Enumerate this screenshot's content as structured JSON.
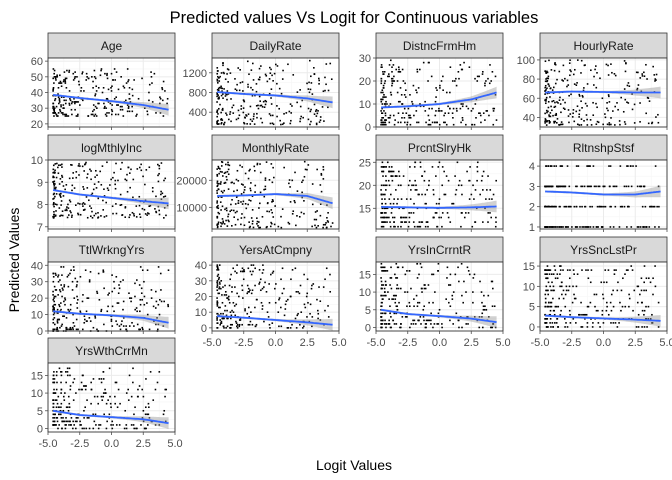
{
  "chart_data": {
    "type": "scatter",
    "title": "Predicted values Vs Logit for Continuous variables",
    "xlabel": "Logit Values",
    "ylabel": "Predicted Values",
    "layout": "facet-grid-4-columns",
    "grid": true,
    "colors": {
      "strip_bg": "#d9d9d9",
      "strip_border": "#333333",
      "panel_border": "#333333",
      "grid_major": "#ebebeb",
      "grid_minor": "#f5f5f5",
      "points": "#000000",
      "smooth_line": "#3366ff",
      "ci_band": "#999999",
      "text": "#000000",
      "tick_text": "#4d4d4d"
    },
    "x_ticks": [
      "-5.0",
      "-2.5",
      "0.0",
      "2.5",
      "5.0"
    ],
    "x_tick_values": [
      -5.0,
      -2.5,
      0.0,
      2.5,
      5.0
    ],
    "xlim": [
      -5.0,
      5.0
    ],
    "panels": [
      {
        "name": "Age",
        "ylim": [
          18,
          62
        ],
        "yticks": [
          20,
          30,
          40,
          50,
          60
        ],
        "point_band": [
          25,
          55
        ],
        "trend": {
          "x": [
            -4.6,
            -2.5,
            0,
            2.5,
            4.5
          ],
          "y": [
            38.5,
            36.5,
            34.5,
            32,
            29
          ]
        }
      },
      {
        "name": "DailyRate",
        "ylim": [
          100,
          1500
        ],
        "yticks": [
          400,
          800,
          1200
        ],
        "point_band": [
          150,
          1450
        ],
        "trend": {
          "x": [
            -4.6,
            -2.5,
            0,
            2.5,
            4.5
          ],
          "y": [
            810,
            770,
            740,
            680,
            600
          ]
        }
      },
      {
        "name": "DistncFrmHm",
        "ylim": [
          0,
          30
        ],
        "yticks": [
          0,
          10,
          20,
          30
        ],
        "point_band": [
          1,
          29
        ],
        "trend": {
          "x": [
            -4.6,
            -2.5,
            0,
            2.5,
            4.5
          ],
          "y": [
            8.5,
            9,
            10,
            12,
            15
          ]
        }
      },
      {
        "name": "HourlyRate",
        "ylim": [
          30,
          102
        ],
        "yticks": [
          40,
          60,
          80,
          100
        ],
        "point_band": [
          32,
          100
        ],
        "trend": {
          "x": [
            -4.6,
            -2.5,
            0,
            2.5,
            4.5
          ],
          "y": [
            66,
            67,
            66.5,
            66,
            66
          ]
        }
      },
      {
        "name": "logMthlyInc",
        "ylim": [
          6.9,
          10
        ],
        "yticks": [
          7,
          8,
          9,
          10
        ],
        "point_band": [
          7.4,
          9.9
        ],
        "trend": {
          "x": [
            -4.6,
            -2.5,
            0,
            2.5,
            4.5
          ],
          "y": [
            8.65,
            8.45,
            8.3,
            8.15,
            8.05
          ]
        }
      },
      {
        "name": "MonthlyRate",
        "ylim": [
          2000,
          27500
        ],
        "yticks": [
          10000,
          20000
        ],
        "point_band": [
          2500,
          27000
        ],
        "trend": {
          "x": [
            -4.6,
            -2.5,
            0,
            2.5,
            4.5
          ],
          "y": [
            14200,
            14400,
            14900,
            14200,
            11500
          ]
        }
      },
      {
        "name": "PrcntSlryHk",
        "ylim": [
          10.5,
          25.5
        ],
        "yticks": [
          15,
          20,
          25
        ],
        "point_band": [
          11,
          25
        ],
        "trend": {
          "x": [
            -4.6,
            -2.5,
            0,
            2.5,
            4.5
          ],
          "y": [
            15.3,
            15.2,
            15.1,
            15.2,
            15.4
          ]
        }
      },
      {
        "name": "RltnshpStsf",
        "ylim": [
          0.9,
          4.3
        ],
        "yticks": [
          1,
          2,
          3,
          4
        ],
        "point_band": [
          1,
          4
        ],
        "trend": {
          "x": [
            -4.6,
            -2.5,
            0,
            2.5,
            4.5
          ],
          "y": [
            2.75,
            2.7,
            2.6,
            2.6,
            2.75
          ]
        }
      },
      {
        "name": "TtlWrkngYrs",
        "ylim": [
          0,
          42
        ],
        "yticks": [
          0,
          10,
          20,
          30,
          40
        ],
        "point_band": [
          0,
          40
        ],
        "trend": {
          "x": [
            -4.6,
            -2.5,
            0,
            2.5,
            4.5
          ],
          "y": [
            12,
            10.5,
            9.5,
            8,
            5
          ]
        }
      },
      {
        "name": "YersAtCmpny",
        "ylim": [
          -2,
          42
        ],
        "yticks": [
          0,
          10,
          20,
          30,
          40
        ],
        "point_band": [
          0,
          40
        ],
        "trend": {
          "x": [
            -4.6,
            -2.5,
            0,
            2.5,
            4.5
          ],
          "y": [
            7.5,
            6.5,
            5,
            3.5,
            2
          ]
        }
      },
      {
        "name": "YrsInCrrntR",
        "ylim": [
          -1,
          18.5
        ],
        "yticks": [
          0,
          5,
          10,
          15
        ],
        "point_band": [
          0,
          18
        ],
        "trend": {
          "x": [
            -4.6,
            -2.5,
            0,
            2.5,
            4.5
          ],
          "y": [
            5,
            3.8,
            3.2,
            2.5,
            1.5
          ]
        }
      },
      {
        "name": "YrsSncLstPr",
        "ylim": [
          -1,
          16
        ],
        "yticks": [
          0,
          5,
          10,
          15
        ],
        "point_band": [
          0,
          15
        ],
        "trend": {
          "x": [
            -4.6,
            -2.5,
            0,
            2.5,
            4.5
          ],
          "y": [
            2.8,
            2.4,
            2.1,
            1.8,
            1.5
          ]
        }
      },
      {
        "name": "YrsWthCrrMn",
        "ylim": [
          -1,
          18.5
        ],
        "yticks": [
          0,
          5,
          10,
          15
        ],
        "point_band": [
          0,
          17
        ],
        "trend": {
          "x": [
            -4.6,
            -2.5,
            0,
            2.5,
            4.5
          ],
          "y": [
            5,
            3.8,
            3.2,
            2.6,
            1.5
          ]
        }
      }
    ]
  }
}
